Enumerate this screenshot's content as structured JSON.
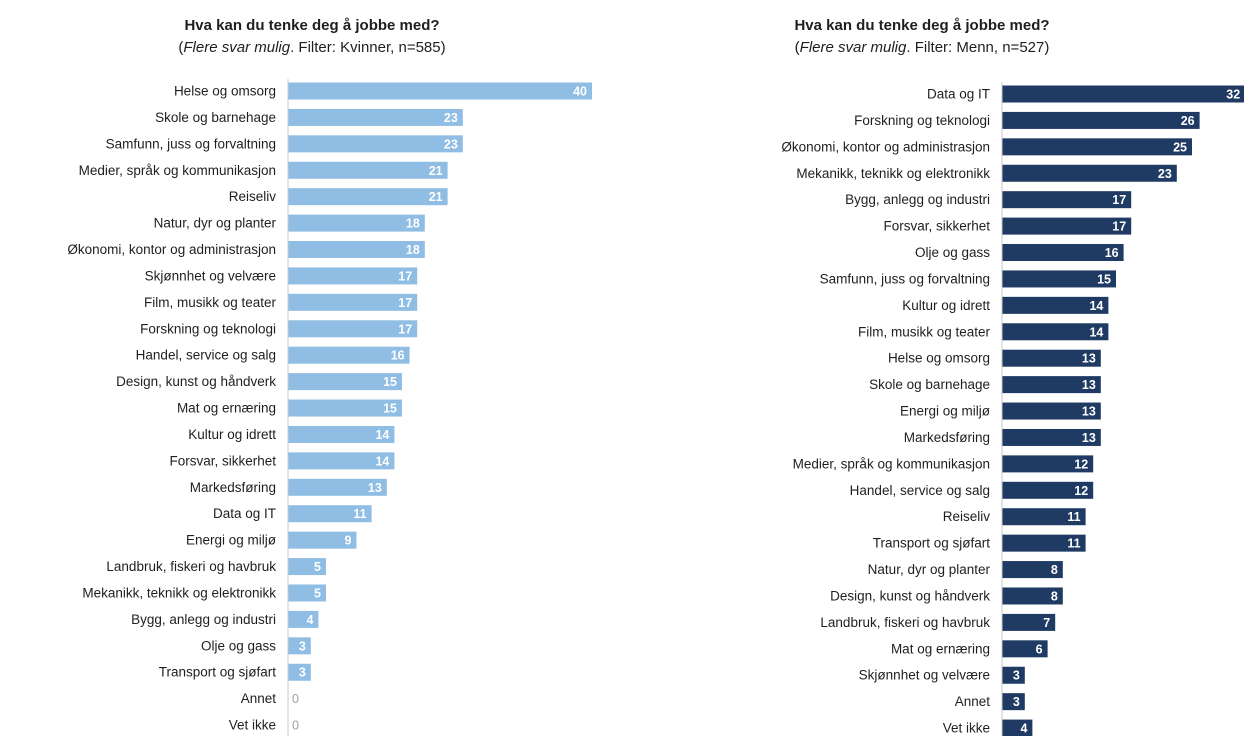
{
  "chart_data": [
    {
      "type": "bar",
      "orientation": "horizontal",
      "title": "Hva kan du tenke deg å jobbe med?",
      "subtitle_italic": "Flere svar mulig",
      "subtitle_rest": ". Filter: Kvinner, n=585)",
      "bar_color": "#8fbde3",
      "categories": [
        "Helse og omsorg",
        "Skole og barnehage",
        "Samfunn, juss og forvaltning",
        "Medier, språk og kommunikasjon",
        "Reiseliv",
        "Natur, dyr og planter",
        "Økonomi, kontor og administrasjon",
        "Skjønnhet og velvære",
        "Film, musikk og teater",
        "Forskning og teknologi",
        "Handel, service og salg",
        "Design, kunst og håndverk",
        "Mat og ernæring",
        "Kultur og idrett",
        "Forsvar, sikkerhet",
        "Markedsføring",
        "Data og IT",
        "Energi og miljø",
        "Landbruk, fiskeri og havbruk",
        "Mekanikk, teknikk og elektronikk",
        "Bygg, anlegg og industri",
        "Olje og gass",
        "Transport og sjøfart",
        "Annet",
        "Vet ikke"
      ],
      "values": [
        40,
        23,
        23,
        21,
        21,
        18,
        18,
        17,
        17,
        17,
        16,
        15,
        15,
        14,
        14,
        13,
        11,
        9,
        5,
        5,
        4,
        3,
        3,
        0,
        0
      ]
    },
    {
      "type": "bar",
      "orientation": "horizontal",
      "title": "Hva kan du tenke deg å jobbe med?",
      "subtitle_italic": "Flere svar mulig",
      "subtitle_rest": ". Filter: Menn, n=527)",
      "bar_color": "#1f3a63",
      "categories": [
        "Data og IT",
        "Forskning og teknologi",
        "Økonomi, kontor og administrasjon",
        "Mekanikk, teknikk og elektronikk",
        "Bygg, anlegg og industri",
        "Forsvar, sikkerhet",
        "Olje og gass",
        "Samfunn, juss og forvaltning",
        "Kultur og idrett",
        "Film, musikk og teater",
        "Helse og omsorg",
        "Skole og barnehage",
        "Energi og miljø",
        "Markedsføring",
        "Medier, språk og kommunikasjon",
        "Handel, service og salg",
        "Reiseliv",
        "Transport og sjøfart",
        "Natur, dyr og planter",
        "Design, kunst og håndverk",
        "Landbruk, fiskeri og havbruk",
        "Mat og ernæring",
        "Skjønnhet og velvære",
        "Annet",
        "Vet ikke"
      ],
      "values": [
        32,
        26,
        25,
        23,
        17,
        17,
        16,
        15,
        14,
        14,
        13,
        13,
        13,
        13,
        12,
        12,
        11,
        11,
        8,
        8,
        7,
        6,
        3,
        3,
        4
      ]
    }
  ]
}
